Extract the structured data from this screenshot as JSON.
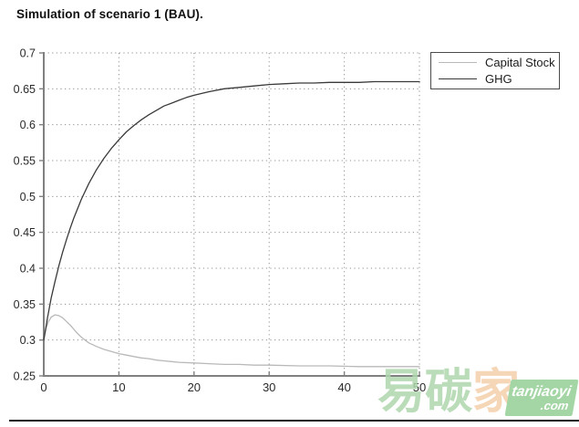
{
  "title": "Simulation of scenario 1 (BAU).",
  "chart_data": {
    "type": "line",
    "title": "Simulation of scenario 1 (BAU).",
    "xlabel": "",
    "ylabel": "",
    "xlim": [
      0,
      50
    ],
    "ylim": [
      0.25,
      0.7
    ],
    "x_ticks": [
      0,
      10,
      20,
      30,
      40,
      50
    ],
    "x_tick_labels": [
      "0",
      "10",
      "20",
      "30",
      "40",
      "50"
    ],
    "y_ticks": [
      0.25,
      0.3,
      0.35,
      0.4,
      0.45,
      0.5,
      0.55,
      0.6,
      0.65,
      0.7
    ],
    "y_tick_labels": [
      "0.25",
      "0.3",
      "0.35",
      "0.4",
      "0.45",
      "0.5",
      "0.55",
      "0.6",
      "0.65",
      "0.7"
    ],
    "grid": "dotted",
    "legend_position": "outside-top-right",
    "axis_color": "#808080",
    "grid_color": "#8f8f8f",
    "tick_label_color": "#2a2a2a",
    "series": [
      {
        "name": "Capital Stock",
        "color": "#b9b9b9",
        "points": [
          [
            0,
            0.3
          ],
          [
            0.3,
            0.316
          ],
          [
            0.6,
            0.325
          ],
          [
            1,
            0.332
          ],
          [
            1.5,
            0.335
          ],
          [
            2,
            0.334
          ],
          [
            2.5,
            0.331
          ],
          [
            3,
            0.326
          ],
          [
            3.5,
            0.321
          ],
          [
            4,
            0.315
          ],
          [
            4.5,
            0.309
          ],
          [
            5,
            0.304
          ],
          [
            5.5,
            0.3
          ],
          [
            6,
            0.296
          ],
          [
            7,
            0.291
          ],
          [
            8,
            0.287
          ],
          [
            9,
            0.284
          ],
          [
            10,
            0.281
          ],
          [
            11,
            0.279
          ],
          [
            12,
            0.277
          ],
          [
            13,
            0.275
          ],
          [
            14,
            0.274
          ],
          [
            15,
            0.272
          ],
          [
            16,
            0.271
          ],
          [
            17,
            0.27
          ],
          [
            18,
            0.269
          ],
          [
            20,
            0.268
          ],
          [
            22,
            0.267
          ],
          [
            24,
            0.266
          ],
          [
            26,
            0.266
          ],
          [
            28,
            0.265
          ],
          [
            30,
            0.265
          ],
          [
            34,
            0.264
          ],
          [
            38,
            0.264
          ],
          [
            42,
            0.263
          ],
          [
            46,
            0.263
          ],
          [
            50,
            0.263
          ]
        ]
      },
      {
        "name": "GHG",
        "color": "#3a3a3a",
        "points": [
          [
            0,
            0.3
          ],
          [
            0.5,
            0.331
          ],
          [
            1,
            0.359
          ],
          [
            1.5,
            0.382
          ],
          [
            2,
            0.403
          ],
          [
            2.5,
            0.422
          ],
          [
            3,
            0.439
          ],
          [
            3.5,
            0.455
          ],
          [
            4,
            0.47
          ],
          [
            5,
            0.496
          ],
          [
            6,
            0.518
          ],
          [
            7,
            0.537
          ],
          [
            8,
            0.553
          ],
          [
            9,
            0.567
          ],
          [
            10,
            0.579
          ],
          [
            11,
            0.59
          ],
          [
            12,
            0.599
          ],
          [
            13,
            0.607
          ],
          [
            14,
            0.614
          ],
          [
            15,
            0.62
          ],
          [
            16,
            0.626
          ],
          [
            17,
            0.63
          ],
          [
            18,
            0.634
          ],
          [
            19,
            0.638
          ],
          [
            20,
            0.641
          ],
          [
            22,
            0.646
          ],
          [
            24,
            0.65
          ],
          [
            26,
            0.652
          ],
          [
            28,
            0.654
          ],
          [
            30,
            0.656
          ],
          [
            32,
            0.657
          ],
          [
            34,
            0.658
          ],
          [
            36,
            0.658
          ],
          [
            38,
            0.659
          ],
          [
            40,
            0.659
          ],
          [
            42,
            0.659
          ],
          [
            44,
            0.66
          ],
          [
            46,
            0.66
          ],
          [
            48,
            0.66
          ],
          [
            50,
            0.66
          ]
        ]
      }
    ]
  },
  "watermark": {
    "text_green": "易碳",
    "text_salmon": "家",
    "badge_line1": "tanjiaoyi",
    "badge_line2": ".com",
    "green_hex": "#aed7ad",
    "salmon_hex": "#f4cfab",
    "badge_bg_hex": "#94cf95"
  }
}
